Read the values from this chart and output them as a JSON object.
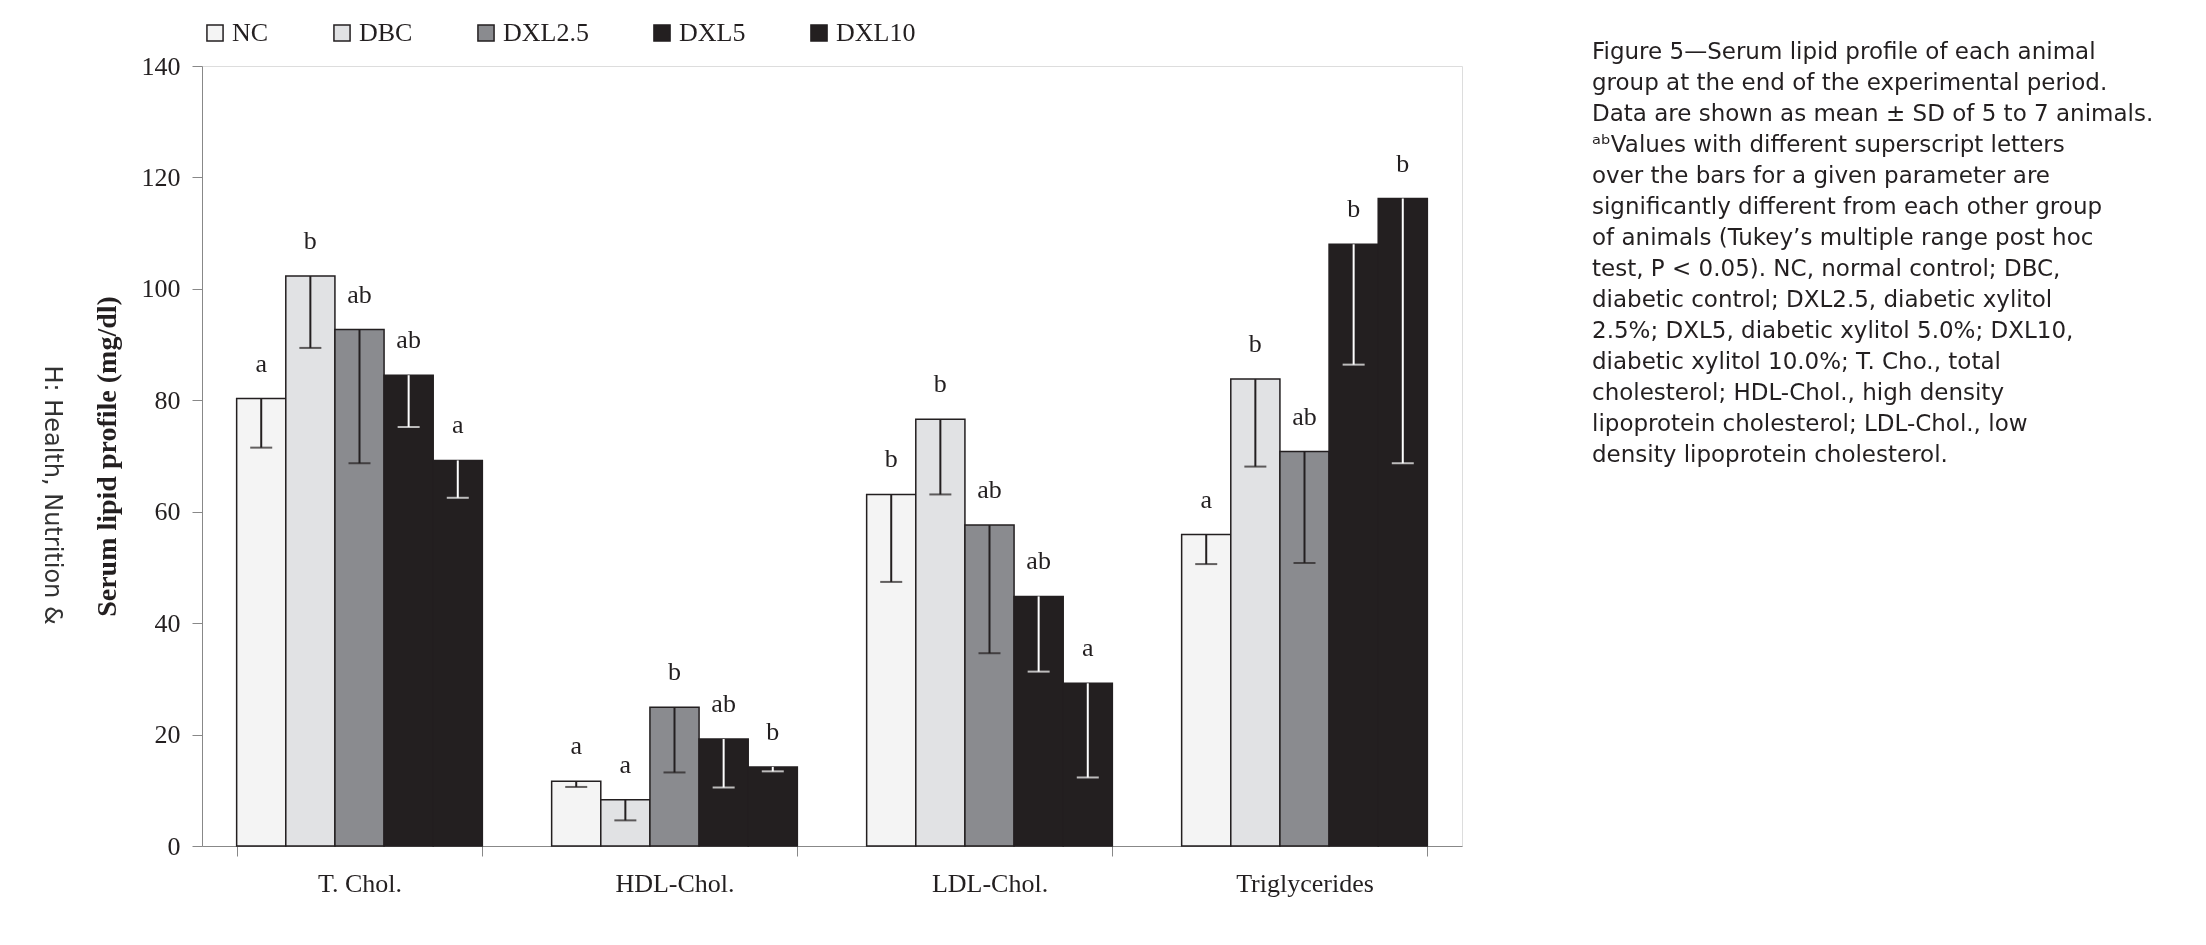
{
  "chart_data": {
    "type": "bar",
    "ylabel": "Serum lipid profile (mg/dl)",
    "categories": [
      "T. Chol.",
      "HDL-Chol.",
      "LDL-Chol.",
      "Triglycerides"
    ],
    "ylim": [
      0,
      140
    ],
    "yticks": [
      0,
      20,
      40,
      60,
      80,
      100,
      120,
      140
    ],
    "grid": false,
    "legend": "top",
    "series": [
      {
        "name": "NC",
        "color": "#f4f4f4",
        "values": [
          80.3,
          11.6,
          63.1,
          55.9
        ],
        "errors": [
          [
            71.5,
            80.3
          ],
          [
            10.6,
            11.6
          ],
          [
            47.4,
            63.1
          ],
          [
            50.6,
            55.9
          ]
        ],
        "value_labels": [
          "a",
          "a",
          "b",
          "a"
        ]
      },
      {
        "name": "DBC",
        "color": "#e1e2e4",
        "values": [
          102.3,
          8.3,
          76.6,
          83.8
        ],
        "errors": [
          [
            89.4,
            102.3
          ],
          [
            4.6,
            8.3
          ],
          [
            63.1,
            76.6
          ],
          [
            68.1,
            83.8
          ]
        ],
        "value_labels": [
          "b",
          "a",
          "b",
          "b"
        ]
      },
      {
        "name": "DXL2.5",
        "color": "#8a8b8f",
        "values": [
          92.7,
          24.9,
          57.6,
          70.8
        ],
        "errors": [
          [
            68.7,
            92.7
          ],
          [
            13.2,
            24.9
          ],
          [
            34.6,
            57.6
          ],
          [
            50.8,
            70.8
          ]
        ],
        "value_labels": [
          "ab",
          "b",
          "ab",
          "ab"
        ]
      },
      {
        "name": "DXL5",
        "color": "#231f20",
        "values": [
          84.5,
          19.2,
          44.8,
          108.0
        ],
        "errors": [
          [
            75.2,
            84.5
          ],
          [
            10.5,
            19.2
          ],
          [
            31.3,
            44.8
          ],
          [
            86.4,
            108.0
          ]
        ],
        "value_labels": [
          "ab",
          "ab",
          "ab",
          "b"
        ]
      },
      {
        "name": "DXL10",
        "color": "#231f20",
        "values": [
          69.2,
          14.2,
          29.2,
          116.2
        ],
        "errors": [
          [
            62.5,
            69.2
          ],
          [
            13.4,
            14.2
          ],
          [
            12.3,
            29.2
          ],
          [
            68.7,
            116.2
          ]
        ],
        "value_labels": [
          "a",
          "b",
          "a",
          "b"
        ]
      }
    ],
    "annotations": [
      "Figure 5—Serum lipid profile of each animal group at the end of the experimental period. Data are shown as mean ± SD of 5 to 7 animals. ᵃᵇValues with different superscript letters over the bars for a given parameter are significantly different from each other group of animals (Tukey’s multiple range post hoc test, P < 0.05). NC, normal control; DBC, diabetic control; DXL2.5, diabetic xylitol 2.5%; DXL5, diabetic xylitol 5.0%; DXL10, diabetic xylitol 10.0%; T. Cho., total cholesterol; HDL-Chol., high density lipoprotein cholesterol; LDL-Chol., low density lipoprotein cholesterol.",
      "H: Health, Nutrition &"
    ]
  }
}
